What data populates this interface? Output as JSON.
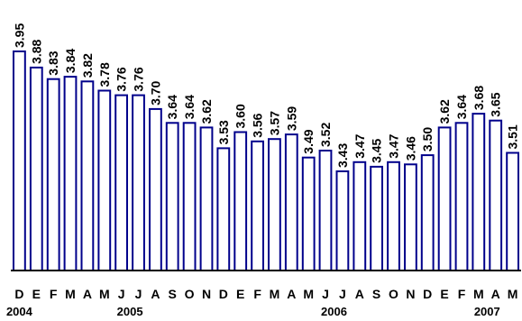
{
  "chart_data": {
    "type": "bar",
    "title": "",
    "xlabel": "",
    "ylabel": "",
    "ylim": [
      3.0,
      4.0
    ],
    "grid": false,
    "legend": "none",
    "bar_fill": "#ffffff",
    "bar_stroke": "#00008b",
    "axis_color": "#000000",
    "categories": [
      "D",
      "E",
      "F",
      "M",
      "A",
      "M",
      "J",
      "J",
      "A",
      "S",
      "O",
      "N",
      "D",
      "E",
      "F",
      "M",
      "A",
      "M",
      "J",
      "J",
      "A",
      "S",
      "O",
      "N",
      "D",
      "E",
      "F",
      "M",
      "A",
      "M"
    ],
    "values": [
      3.95,
      3.88,
      3.83,
      3.84,
      3.82,
      3.78,
      3.76,
      3.76,
      3.7,
      3.64,
      3.64,
      3.62,
      3.53,
      3.6,
      3.56,
      3.57,
      3.59,
      3.49,
      3.52,
      3.43,
      3.47,
      3.45,
      3.47,
      3.46,
      3.5,
      3.62,
      3.64,
      3.68,
      3.65,
      3.51
    ],
    "value_labels": [
      "3.95",
      "3.88",
      "3.83",
      "3.84",
      "3.82",
      "3.78",
      "3.76",
      "3.76",
      "3.70",
      "3.64",
      "3.64",
      "3.62",
      "3.53",
      "3.60",
      "3.56",
      "3.57",
      "3.59",
      "3.49",
      "3.52",
      "3.43",
      "3.47",
      "3.45",
      "3.47",
      "3.46",
      "3.50",
      "3.62",
      "3.64",
      "3.68",
      "3.65",
      "3.51"
    ],
    "year_labels": [
      {
        "text": "2004",
        "index": 0
      },
      {
        "text": "2005",
        "index": 6.5
      },
      {
        "text": "2006",
        "index": 18.5
      },
      {
        "text": "2007",
        "index": 27.5
      }
    ]
  }
}
